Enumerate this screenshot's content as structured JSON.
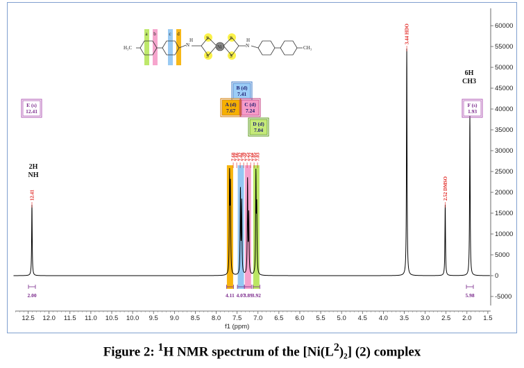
{
  "chart_data": {
    "type": "line",
    "xlabel": "f1 (ppm)",
    "ylabel": "",
    "xlim": [
      12.9,
      1.4
    ],
    "ylim": [
      -6500,
      64000
    ],
    "x_reversed": true,
    "x_ticks": [
      "12.5",
      "12.0",
      "11.5",
      "11.0",
      "10.5",
      "10.0",
      "9.5",
      "9.0",
      "8.5",
      "8.0",
      "7.5",
      "7.0",
      "6.5",
      "6.0",
      "5.5",
      "5.0",
      "4.5",
      "4.0",
      "3.5",
      "3.0",
      "2.5",
      "2.0",
      "1.5"
    ],
    "y_ticks": [
      "-5000",
      "0",
      "5000",
      "10000",
      "15000",
      "20000",
      "25000",
      "30000",
      "35000",
      "40000",
      "45000",
      "50000",
      "55000",
      "60000"
    ],
    "y_axis_side": "right",
    "peaks": [
      {
        "ppm": 12.41,
        "height": 17000,
        "label": "12.41"
      },
      {
        "ppm": 7.68,
        "height": 23000,
        "label": "7.68"
      },
      {
        "ppm": 7.66,
        "height": 20000,
        "label": "7.66"
      },
      {
        "ppm": 7.42,
        "height": 20000,
        "label": "7.42"
      },
      {
        "ppm": 7.39,
        "height": 17000,
        "label": "7.39"
      },
      {
        "ppm": 7.25,
        "height": 22500,
        "label": "7.25"
      },
      {
        "ppm": 7.22,
        "height": 14000,
        "label": "7.22"
      },
      {
        "ppm": 7.05,
        "height": 23500,
        "label": "7.05"
      },
      {
        "ppm": 7.03,
        "height": 15000,
        "label": "7.03"
      },
      {
        "ppm": 3.44,
        "height": 54500,
        "label": "3.44 HDO"
      },
      {
        "ppm": 2.52,
        "height": 17000,
        "label": "2.52 DMSO"
      },
      {
        "ppm": 1.93,
        "height": 39000,
        "label": "1.93"
      }
    ],
    "integrals": [
      {
        "ppm": 12.41,
        "value": "2.00"
      },
      {
        "ppm": 7.67,
        "value": "4.11"
      },
      {
        "ppm": 7.41,
        "value": "4.07"
      },
      {
        "ppm": 7.24,
        "value": "3.89"
      },
      {
        "ppm": 7.04,
        "value": "3.92"
      },
      {
        "ppm": 1.93,
        "value": "5.98"
      }
    ],
    "assignments": [
      {
        "letter": "E",
        "mult": "(s)",
        "ppm_text": "12.41",
        "color": "#ffffff",
        "border": "#b05ab5"
      },
      {
        "letter": "B",
        "mult": "(d)",
        "ppm_text": "7.41",
        "color": "#9ccdf7",
        "border": "#3a78c9"
      },
      {
        "letter": "A",
        "mult": "(d)",
        "ppm_text": "7.67",
        "color": "#f6b000",
        "border": "#d07a00"
      },
      {
        "letter": "C",
        "mult": "(d)",
        "ppm_text": "7.24",
        "color": "#f59bc8",
        "border": "#c0397d"
      },
      {
        "letter": "D",
        "mult": "(d)",
        "ppm_text": "7.04",
        "color": "#c6ea7a",
        "border": "#5a9a16"
      },
      {
        "letter": "F",
        "mult": "(s)",
        "ppm_text": "1.93",
        "color": "#ffffff",
        "border": "#b05ab5"
      }
    ],
    "highlight_bands": [
      {
        "ppm": 7.67,
        "color": "#f6b000"
      },
      {
        "ppm": 7.41,
        "color": "#8ec4f2"
      },
      {
        "ppm": 7.24,
        "color": "#f59bc8"
      },
      {
        "ppm": 7.04,
        "color": "#b7e55b"
      }
    ],
    "annotations": [
      {
        "text": "2H",
        "sub": "NH"
      },
      {
        "text": "6H",
        "sub": "CH3"
      }
    ]
  },
  "structure": {
    "ring_letters": [
      "a",
      "b",
      "c",
      "d"
    ],
    "left_group": "H₃C",
    "right_group": "CH₃",
    "nh_label": "N",
    "h_label": "H",
    "s_label": "S",
    "metal_label": "Ni"
  },
  "caption": {
    "prefix": "Figure 2: ",
    "sup1": "1",
    "mid": "H NMR spectrum of the [Ni(L",
    "sup2": "2",
    "sub2": ")₂] (2) ",
    "end": "complex"
  },
  "colors": {
    "spectrum": "#000000",
    "peak_label": "#e0211d",
    "integral": "#7b2a8c",
    "frame": "#7f9fcf"
  }
}
